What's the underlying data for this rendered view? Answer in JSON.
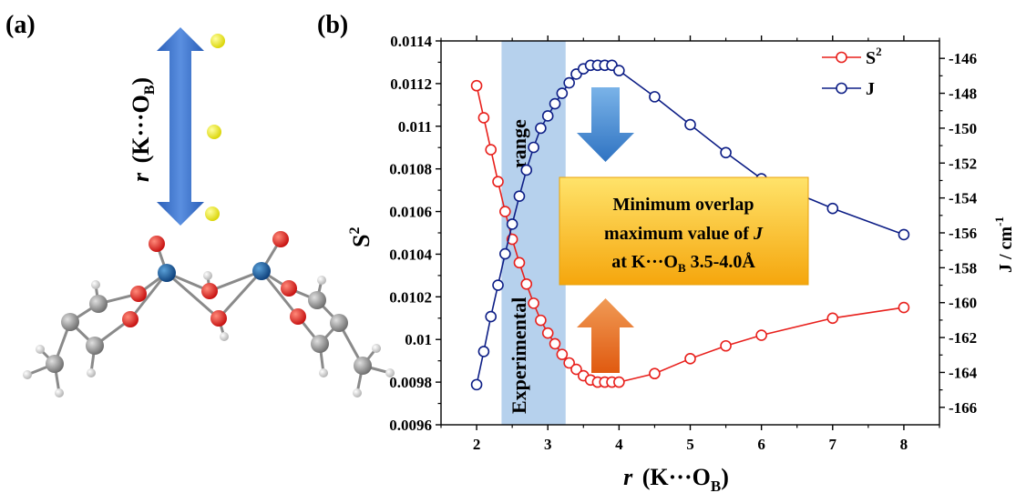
{
  "panels": {
    "a_label": "(a)",
    "b_label": "(b)"
  },
  "molecule": {
    "distance_label_r": "r",
    "distance_label_paren": "(K···O",
    "distance_label_sub": "B",
    "distance_label_close": ")"
  },
  "callout": {
    "line1": "Minimum overlap",
    "line2_prefix": "maximum value of ",
    "line2_var": "J",
    "line3_prefix": "at K···O",
    "line3_sub": "B",
    "line3_suffix": " 3.5-4.0Å"
  },
  "band_label": {
    "word1": "Experimental",
    "word2": "range"
  },
  "colors": {
    "s2": "#e8201c",
    "j": "#0d1e86",
    "band": "#a9c9ea",
    "arrow_blue": "#3e86d0",
    "arrow_orange": "#e86c1c",
    "callout_top": "#ffe36a",
    "callout_bottom": "#f5a60d",
    "double_arrow": "#3366c4",
    "potassium": "#eeea1c"
  },
  "chart_data": {
    "type": "line",
    "xlabel_r": "r",
    "xlabel_text": "(K···O",
    "xlabel_sub": "B",
    "xlabel_close": ")",
    "ylabel_left": "S",
    "ylabel_left_sup": "2",
    "ylabel_right": "J / cm",
    "ylabel_right_sup": "-1",
    "xlim": [
      1.5,
      8.5
    ],
    "ylim_left": [
      0.0096,
      0.0114
    ],
    "ylim_right": [
      -167,
      -145
    ],
    "xticks": [
      "2",
      "3",
      "4",
      "5",
      "6",
      "7",
      "8"
    ],
    "yticks_left": [
      "0.0096",
      "0.0098",
      "0.01",
      "0.0102",
      "0.0104",
      "0.0106",
      "0.0108",
      "0.011",
      "0.0112",
      "0.0114"
    ],
    "yticks_right": [
      "-146",
      "-148",
      "-150",
      "-152",
      "-154",
      "-156",
      "-158",
      "-160",
      "-162",
      "-164",
      "-166"
    ],
    "highlight_range": [
      2.35,
      3.25
    ],
    "legend_position": "top-right",
    "series": [
      {
        "name": "S",
        "name_sup": "2",
        "axis": "left",
        "x": [
          2.0,
          2.1,
          2.2,
          2.3,
          2.4,
          2.5,
          2.6,
          2.7,
          2.8,
          2.9,
          3.0,
          3.1,
          3.2,
          3.3,
          3.4,
          3.5,
          3.6,
          3.7,
          3.8,
          3.9,
          4.0,
          4.5,
          5.0,
          5.5,
          6.0,
          7.0,
          8.0
        ],
        "y": [
          0.01119,
          0.01104,
          0.01089,
          0.01074,
          0.0106,
          0.01047,
          0.01036,
          0.01026,
          0.01017,
          0.01009,
          0.01003,
          0.00998,
          0.00993,
          0.00989,
          0.00986,
          0.00983,
          0.00981,
          0.0098,
          0.0098,
          0.0098,
          0.0098,
          0.00984,
          0.00991,
          0.00997,
          0.01002,
          0.0101,
          0.01015
        ]
      },
      {
        "name": "J",
        "axis": "right",
        "x": [
          2.0,
          2.1,
          2.2,
          2.3,
          2.4,
          2.5,
          2.6,
          2.7,
          2.8,
          2.9,
          3.0,
          3.1,
          3.2,
          3.3,
          3.4,
          3.5,
          3.6,
          3.7,
          3.8,
          3.9,
          4.0,
          4.5,
          5.0,
          5.5,
          6.0,
          7.0,
          8.0
        ],
        "y": [
          -164.7,
          -162.8,
          -160.8,
          -159.0,
          -157.2,
          -155.5,
          -153.9,
          -152.4,
          -151.1,
          -150.0,
          -149.3,
          -148.6,
          -148.0,
          -147.4,
          -146.9,
          -146.6,
          -146.4,
          -146.4,
          -146.4,
          -146.4,
          -146.7,
          -148.2,
          -149.8,
          -151.4,
          -152.9,
          -154.6,
          -156.1
        ]
      }
    ]
  }
}
